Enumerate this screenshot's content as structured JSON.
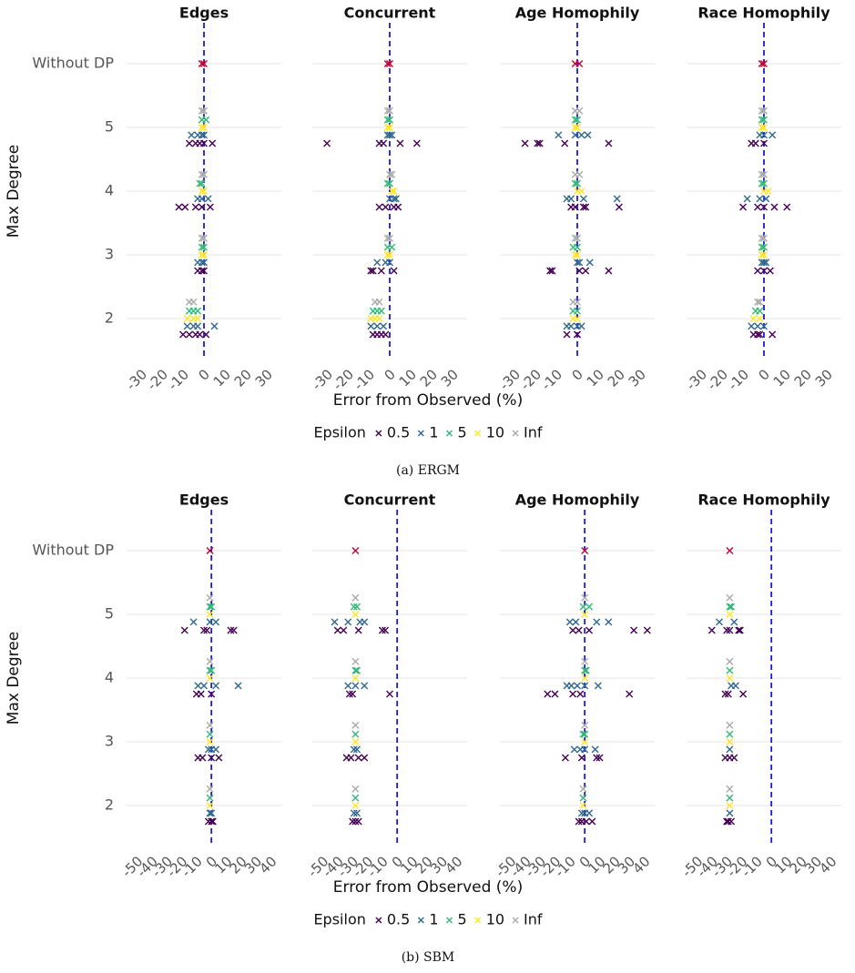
{
  "chart_data": [
    {
      "type": "scatter",
      "caption": "(a) ERGM",
      "ylabel": "Max Degree",
      "xlabel": "Error from Observed (%)",
      "categories": [
        "2",
        "3",
        "4",
        "5",
        "Without DP"
      ],
      "legend_title": "Epsilon",
      "series": [
        {
          "name": "0.5",
          "color": "#440154"
        },
        {
          "name": "1",
          "color": "#31688e"
        },
        {
          "name": "5",
          "color": "#35b779"
        },
        {
          "name": "10",
          "color": "#fde725"
        },
        {
          "name": "Inf",
          "color": "#aaaaaa"
        }
      ],
      "without_dp_color": "#c0003a",
      "reference_color": "#1a1adb",
      "xlim": [
        -37,
        37
      ],
      "xticks": [
        -30,
        -20,
        -10,
        0,
        10,
        20,
        30
      ],
      "reference_line": 0,
      "grid": true,
      "facets": [
        {
          "title": "Edges",
          "without_dp": [
            -1,
            0
          ],
          "points": [
            [
              [
                -10,
                -7,
                -4,
                -2,
                1
              ],
              [
                -8,
                -5,
                -3,
                5
              ],
              [
                -7,
                -5,
                -3
              ],
              [
                -8,
                -5,
                -3
              ],
              [
                -7,
                -5
              ]
            ],
            [
              [
                -3,
                -1,
                0
              ],
              [
                -3,
                -1,
                0
              ],
              [
                -1,
                0
              ],
              [
                -1,
                0
              ],
              [
                -1,
                0
              ]
            ],
            [
              [
                -12,
                -9,
                -4,
                -1,
                3
              ],
              [
                -3,
                -1,
                2
              ],
              [
                -2,
                -1
              ],
              [
                -1,
                0
              ],
              [
                -1,
                0
              ]
            ],
            [
              [
                -7,
                -4,
                -2,
                0,
                4
              ],
              [
                -6,
                -3,
                -1,
                0
              ],
              [
                -1,
                1
              ],
              [
                -1,
                0
              ],
              [
                -1,
                0
              ]
            ]
          ]
        },
        {
          "title": "Concurrent",
          "without_dp": [
            -1,
            0
          ],
          "points": [
            [
              [
                -8,
                -6,
                -4,
                -2
              ],
              [
                -9,
                -6,
                -3
              ],
              [
                -8,
                -6,
                -4
              ],
              [
                -9,
                -7,
                -5
              ],
              [
                -7,
                -5
              ]
            ],
            [
              [
                -9,
                -8,
                -4,
                2
              ],
              [
                -6,
                -2,
                0
              ],
              [
                -1,
                1
              ],
              [
                -1,
                0
              ],
              [
                -1,
                0
              ]
            ],
            [
              [
                -5,
                -2,
                2,
                4
              ],
              [
                0,
                2,
                3
              ],
              [
                -1,
                0
              ],
              [
                1,
                2
              ],
              [
                0,
                1
              ]
            ],
            [
              [
                -30,
                -5,
                -3,
                5,
                13
              ],
              [
                -1,
                0,
                1
              ],
              [
                -1,
                0
              ],
              [
                -1,
                0
              ],
              [
                -1,
                0
              ]
            ]
          ]
        },
        {
          "title": "Age Homophily",
          "without_dp": [
            -1,
            1
          ],
          "points": [
            [
              [
                -5,
                0,
                0
              ],
              [
                -5,
                -3,
                0,
                2
              ],
              [
                -2,
                0
              ],
              [
                -2,
                0
              ],
              [
                -2,
                0
              ]
            ],
            [
              [
                -13,
                -12,
                1,
                4,
                15
              ],
              [
                0,
                1,
                6
              ],
              [
                -2,
                0
              ],
              [
                -1,
                0
              ],
              [
                -1,
                0
              ]
            ],
            [
              [
                -3,
                -1,
                3,
                4,
                20
              ],
              [
                -5,
                -3,
                3,
                19
              ],
              [
                -1,
                0
              ],
              [
                0,
                2
              ],
              [
                -1,
                1
              ]
            ],
            [
              [
                -25,
                -19,
                -18,
                -6,
                15
              ],
              [
                -9,
                -1,
                2,
                5
              ],
              [
                -1,
                0
              ],
              [
                -1,
                0
              ],
              [
                -1,
                1
              ]
            ]
          ]
        },
        {
          "title": "Race Homophily",
          "without_dp": [
            -1,
            0
          ],
          "points": [
            [
              [
                -5,
                -3,
                -2,
                4
              ],
              [
                -6,
                -3,
                0
              ],
              [
                -4,
                -2
              ],
              [
                -5,
                -2
              ],
              [
                -3,
                -2
              ]
            ],
            [
              [
                -3,
                0,
                3
              ],
              [
                -1,
                0,
                1
              ],
              [
                -1,
                0
              ],
              [
                -1,
                0
              ],
              [
                -1,
                0
              ]
            ],
            [
              [
                -10,
                -3,
                0,
                5,
                11
              ],
              [
                -8,
                -2,
                1
              ],
              [
                -1,
                0
              ],
              [
                0,
                2
              ],
              [
                -1,
                0
              ]
            ],
            [
              [
                -6,
                -4,
                0
              ],
              [
                -2,
                0,
                4
              ],
              [
                -1,
                0
              ],
              [
                -1,
                0
              ],
              [
                -1,
                0
              ]
            ]
          ]
        }
      ]
    },
    {
      "type": "scatter",
      "caption": "(b) SBM",
      "ylabel": "Max Degree",
      "xlabel": "Error from Observed (%)",
      "categories": [
        "2",
        "3",
        "4",
        "5",
        "Without DP"
      ],
      "legend_title": "Epsilon",
      "series": [
        {
          "name": "0.5",
          "color": "#440154"
        },
        {
          "name": "1",
          "color": "#31688e"
        },
        {
          "name": "5",
          "color": "#35b779"
        },
        {
          "name": "10",
          "color": "#fde725"
        },
        {
          "name": "Inf",
          "color": "#aaaaaa"
        }
      ],
      "without_dp_color": "#c0003a",
      "reference_color": "#1a1adb",
      "xlim": [
        -57,
        47
      ],
      "xticks": [
        -50,
        -40,
        -30,
        -20,
        -10,
        0,
        10,
        20,
        30,
        40
      ],
      "reference_line": 0,
      "grid": true,
      "facets": [
        {
          "title": "Edges",
          "without_dp": [
            -1
          ],
          "points": [
            [
              [
                -2,
                0,
                1
              ],
              [
                -1,
                0
              ],
              [
                -1
              ],
              [
                -1
              ],
              [
                -1
              ]
            ],
            [
              [
                -9,
                -6,
                0,
                5
              ],
              [
                -2,
                0,
                3
              ],
              [
                -1
              ],
              [
                -1
              ],
              [
                -1
              ]
            ],
            [
              [
                -10,
                -7,
                0
              ],
              [
                -9,
                -5,
                3,
                18
              ],
              [
                -1,
                0
              ],
              [
                -1
              ],
              [
                -1
              ]
            ],
            [
              [
                -18,
                -5,
                -3,
                13,
                15
              ],
              [
                -12,
                -1,
                3
              ],
              [
                -1,
                0
              ],
              [
                -1
              ],
              [
                -1
              ]
            ]
          ]
        },
        {
          "title": "Concurrent",
          "without_dp": [
            -28
          ],
          "points": [
            [
              [
                -30,
                -28,
                -26
              ],
              [
                -29,
                -27
              ],
              [
                -28
              ],
              [
                -28
              ],
              [
                -28
              ]
            ],
            [
              [
                -34,
                -31,
                -26,
                -22
              ],
              [
                -29,
                -27
              ],
              [
                -28
              ],
              [
                -28
              ],
              [
                -28
              ]
            ],
            [
              [
                -32,
                -30,
                -5
              ],
              [
                -33,
                -28,
                -22
              ],
              [
                -28,
                -27
              ],
              [
                -28
              ],
              [
                -28
              ]
            ],
            [
              [
                -40,
                -36,
                -26,
                -10,
                -8
              ],
              [
                -42,
                -33,
                -25,
                -22
              ],
              [
                -29,
                -27
              ],
              [
                -28
              ],
              [
                -28
              ]
            ]
          ]
        },
        {
          "title": "Age Homophily",
          "without_dp": [
            0
          ],
          "points": [
            [
              [
                -4,
                -2,
                1,
                5
              ],
              [
                -2,
                0,
                3
              ],
              [
                -1
              ],
              [
                -1
              ],
              [
                -1
              ]
            ],
            [
              [
                -13,
                -2,
                8,
                10
              ],
              [
                -7,
                -3,
                0,
                7
              ],
              [
                -1,
                0
              ],
              [
                0
              ],
              [
                0
              ]
            ],
            [
              [
                -25,
                -20,
                -8,
                -3,
                30
              ],
              [
                -12,
                -9,
                -5,
                0,
                9
              ],
              [
                0,
                1
              ],
              [
                0
              ],
              [
                0
              ]
            ],
            [
              [
                -8,
                -4,
                3,
                33,
                42
              ],
              [
                -10,
                -6,
                8,
                16
              ],
              [
                -1,
                3
              ],
              [
                0
              ],
              [
                0
              ]
            ]
          ]
        },
        {
          "title": "Race Homophily",
          "without_dp": [
            -28
          ],
          "points": [
            [
              [
                -30,
                -29,
                -27
              ],
              [
                -28
              ],
              [
                -28
              ],
              [
                -28
              ],
              [
                -28
              ]
            ],
            [
              [
                -31,
                -28,
                -25
              ],
              [
                -28
              ],
              [
                -28
              ],
              [
                -28
              ],
              [
                -28
              ]
            ],
            [
              [
                -31,
                -29,
                -19
              ],
              [
                -27,
                -24
              ],
              [
                -28
              ],
              [
                -28
              ],
              [
                -28
              ]
            ],
            [
              [
                -40,
                -30,
                -28,
                -22,
                -21
              ],
              [
                -35,
                -25
              ],
              [
                -28,
                -27
              ],
              [
                -28
              ],
              [
                -28
              ]
            ]
          ]
        }
      ]
    }
  ]
}
